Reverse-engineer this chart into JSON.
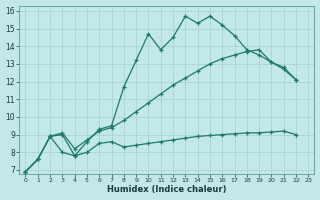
{
  "xlabel": "Humidex (Indice chaleur)",
  "background_color": "#c2e8e8",
  "grid_color": "#aad4d4",
  "line_color": "#1a7a6e",
  "xlim": [
    -0.5,
    23.5
  ],
  "ylim": [
    6.8,
    16.3
  ],
  "xticks": [
    0,
    1,
    2,
    3,
    4,
    5,
    6,
    7,
    8,
    9,
    10,
    11,
    12,
    13,
    14,
    15,
    16,
    17,
    18,
    19,
    20,
    21,
    22,
    23
  ],
  "yticks": [
    7,
    8,
    9,
    10,
    11,
    12,
    13,
    14,
    15,
    16
  ],
  "series1_x": [
    0,
    1,
    2,
    3,
    4,
    5,
    6,
    7,
    8,
    9,
    10,
    11,
    12,
    13,
    14,
    15,
    16,
    17,
    18,
    19,
    20,
    21,
    22
  ],
  "series1_y": [
    6.9,
    7.6,
    8.9,
    9.0,
    7.8,
    8.6,
    9.3,
    9.5,
    11.7,
    13.2,
    14.7,
    13.8,
    14.5,
    15.7,
    15.3,
    15.7,
    15.2,
    14.6,
    13.8,
    13.5,
    13.1,
    12.7,
    12.1
  ],
  "series2_x": [
    0,
    1,
    2,
    3,
    4,
    5,
    6,
    7,
    8,
    9,
    10,
    11,
    12,
    13,
    14,
    15,
    16,
    17,
    18,
    19,
    20,
    21,
    22
  ],
  "series2_y": [
    6.9,
    7.6,
    8.9,
    9.1,
    8.2,
    8.7,
    9.2,
    9.4,
    9.8,
    10.3,
    10.8,
    11.3,
    11.8,
    12.2,
    12.6,
    13.0,
    13.3,
    13.5,
    13.7,
    13.8,
    13.1,
    12.8,
    12.1
  ],
  "series3_x": [
    0,
    1,
    2,
    3,
    4,
    5,
    6,
    7,
    8,
    9,
    10,
    11,
    12,
    13,
    14,
    15,
    16,
    17,
    18,
    19,
    20,
    21,
    22
  ],
  "series3_y": [
    6.9,
    7.6,
    8.9,
    8.0,
    7.8,
    8.0,
    8.5,
    8.6,
    8.3,
    8.4,
    8.5,
    8.6,
    8.7,
    8.8,
    8.9,
    8.95,
    9.0,
    9.05,
    9.1,
    9.1,
    9.15,
    9.2,
    9.0
  ]
}
